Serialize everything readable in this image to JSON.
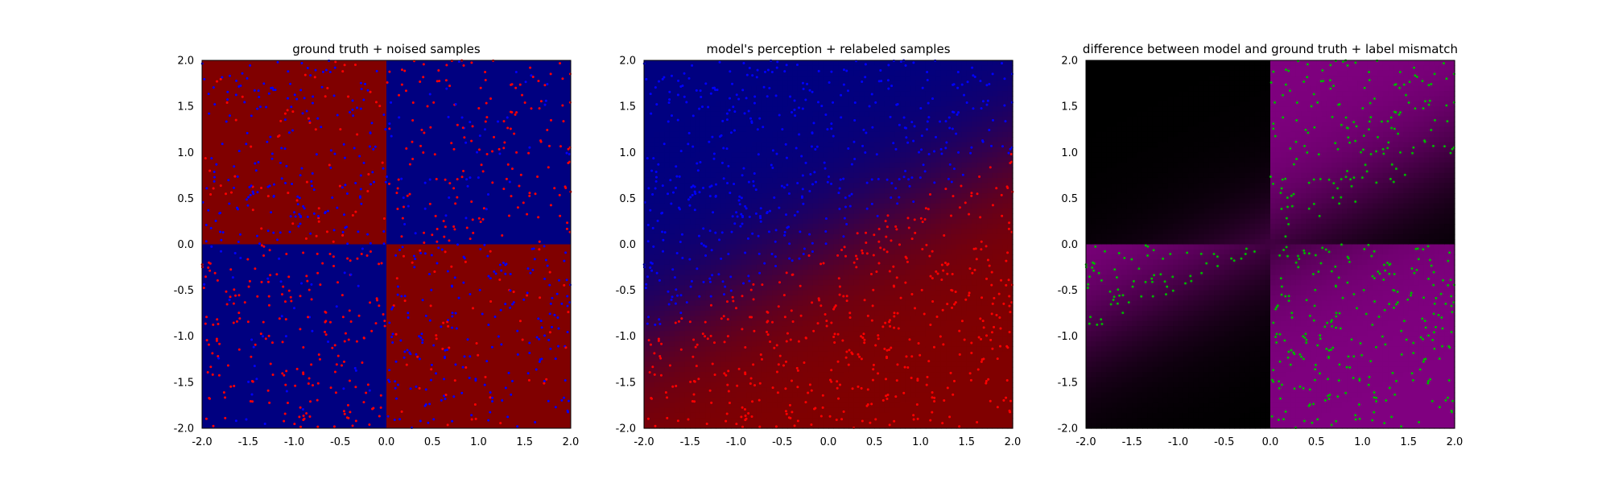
{
  "chart_data": [
    {
      "type": "heatmap",
      "title": "ground truth + noised samples",
      "xlim": [
        -2.0,
        2.0
      ],
      "ylim": [
        -2.0,
        2.0
      ],
      "xticks": [
        "-2.0",
        "-1.5",
        "-1.0",
        "-0.5",
        "0.0",
        "0.5",
        "1.0",
        "1.5",
        "2.0"
      ],
      "yticks": [
        "-2.0",
        "-1.5",
        "-1.0",
        "-0.5",
        "0.0",
        "0.5",
        "1.0",
        "1.5",
        "2.0"
      ],
      "grid": false,
      "background": {
        "kind": "quadrants",
        "colors": {
          "top_left": "#800000",
          "top_right": "#000080",
          "bottom_left": "#000080",
          "bottom_right": "#800000"
        }
      },
      "samples": {
        "kind": "scatter",
        "count": 1000,
        "distribution": "uniform on [-2, 2] x [-2, 2]",
        "colors": [
          "#ff0000",
          "#0000ff"
        ],
        "label_rule": "true class (red if x*y > 0) flipped with probability 0.2"
      }
    },
    {
      "type": "heatmap",
      "title": "model's perception + relabeled samples",
      "xlim": [
        -2.0,
        2.0
      ],
      "ylim": [
        -2.0,
        2.0
      ],
      "xticks": [
        "-2.0",
        "-1.5",
        "-1.0",
        "-0.5",
        "0.0",
        "0.5",
        "1.0",
        "1.5",
        "2.0"
      ],
      "yticks": [
        "-2.0",
        "-1.5",
        "-1.0",
        "-0.5",
        "0.0",
        "0.5",
        "1.0",
        "1.5",
        "2.0"
      ],
      "grid": false,
      "background": {
        "kind": "linear decision boundary",
        "boundary": "y = 0.5 * x (approx.)",
        "colors": {
          "above": "#000080",
          "below": "#800000"
        }
      },
      "samples": {
        "kind": "scatter",
        "count": 1000,
        "colors": [
          "#ff0000",
          "#0000ff"
        ],
        "label_rule": "relabeled by model: blue above boundary, red below"
      }
    },
    {
      "type": "heatmap",
      "title": "difference between model and ground truth + label mismatch",
      "xlim": [
        -2.0,
        2.0
      ],
      "ylim": [
        -2.0,
        2.0
      ],
      "xticks": [
        "-2.0",
        "-1.5",
        "-1.0",
        "-0.5",
        "0.0",
        "0.5",
        "1.0",
        "1.5",
        "2.0"
      ],
      "yticks": [
        "-2.0",
        "-1.5",
        "-1.0",
        "-0.5",
        "0.0",
        "0.5",
        "1.0",
        "1.5",
        "2.0"
      ],
      "grid": false,
      "background": {
        "kind": "absolute difference",
        "colors": {
          "match": "#000000",
          "mismatch": "#800080"
        }
      },
      "samples": {
        "kind": "scatter",
        "count": "about 400",
        "colors": [
          "#00b400"
        ],
        "label_rule": "samples where relabeled class differs from ground truth"
      }
    }
  ]
}
